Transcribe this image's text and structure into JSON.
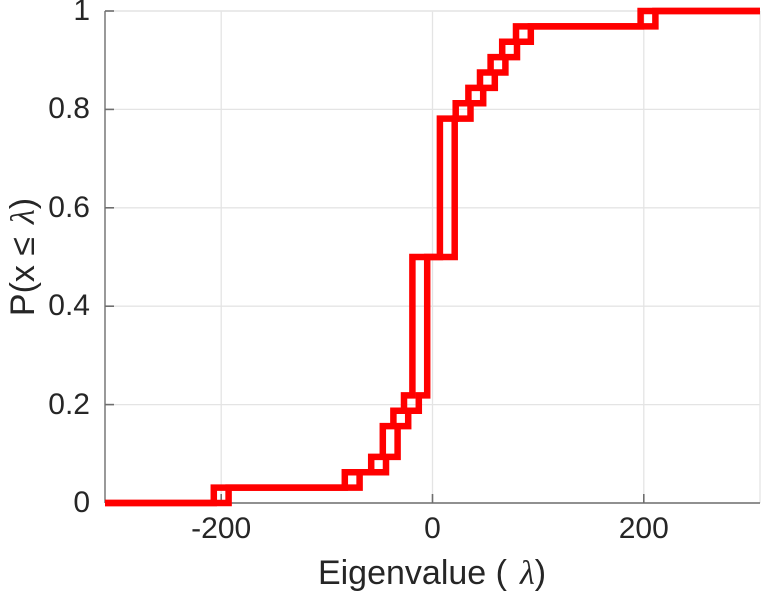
{
  "figure": {
    "background": "#ffffff",
    "text_color": "#262626",
    "axis_color": "#6e6e6e",
    "box_light_color": "#e6e6e6",
    "grid_color": "#e4e4e4"
  },
  "axes": {
    "x_label": {
      "pre": "Eigenvalue (",
      "lambda": "λ",
      "post": ")"
    },
    "y_label": {
      "pre": "P(x ≤",
      "lambda": "λ",
      "post": ")"
    },
    "x_tick_labels": [
      "-200",
      "0",
      "200"
    ],
    "y_tick_labels": [
      "0",
      "0.2",
      "0.4",
      "0.6",
      "0.8",
      "1"
    ]
  },
  "chart_data": {
    "type": "line",
    "subtype": "empirical-cdf-staircase",
    "title": "",
    "xlabel": "Eigenvalue ( λ)",
    "ylabel": "P(x ≤ λ)",
    "xlim": [
      -310,
      310
    ],
    "ylim": [
      0,
      1
    ],
    "x_ticks": [
      -200,
      0,
      200
    ],
    "y_ticks": [
      0,
      0.2,
      0.4,
      0.6,
      0.8,
      1
    ],
    "grid": true,
    "legend": "none",
    "line_color": "#ff0000",
    "line_width": 6.5,
    "n_samples": 32,
    "description": "Two nearly identical empirical CDF staircases of eigenvalues, horizontally offset, forming a chain-of-squares pattern. Steps given as (eigenvalue, cumulative probability).",
    "steps": [
      {
        "x": -200,
        "F": 0.03125
      },
      {
        "x": -76,
        "F": 0.0625
      },
      {
        "x": -51,
        "F": 0.09375
      },
      {
        "x": -40,
        "F": 0.15625
      },
      {
        "x": -30,
        "F": 0.1875
      },
      {
        "x": -20,
        "F": 0.21875
      },
      {
        "x": -12,
        "F": 0.5
      },
      {
        "x": 14,
        "F": 0.78125
      },
      {
        "x": 29,
        "F": 0.8125
      },
      {
        "x": 41,
        "F": 0.84375
      },
      {
        "x": 52,
        "F": 0.875
      },
      {
        "x": 62,
        "F": 0.90625
      },
      {
        "x": 73,
        "F": 0.9375
      },
      {
        "x": 86,
        "F": 0.96875
      },
      {
        "x": 204,
        "F": 1.0
      }
    ],
    "series": [
      {
        "name": "ecdf-left",
        "x_offset": -7
      },
      {
        "name": "ecdf-right",
        "x_offset": 7
      }
    ]
  }
}
